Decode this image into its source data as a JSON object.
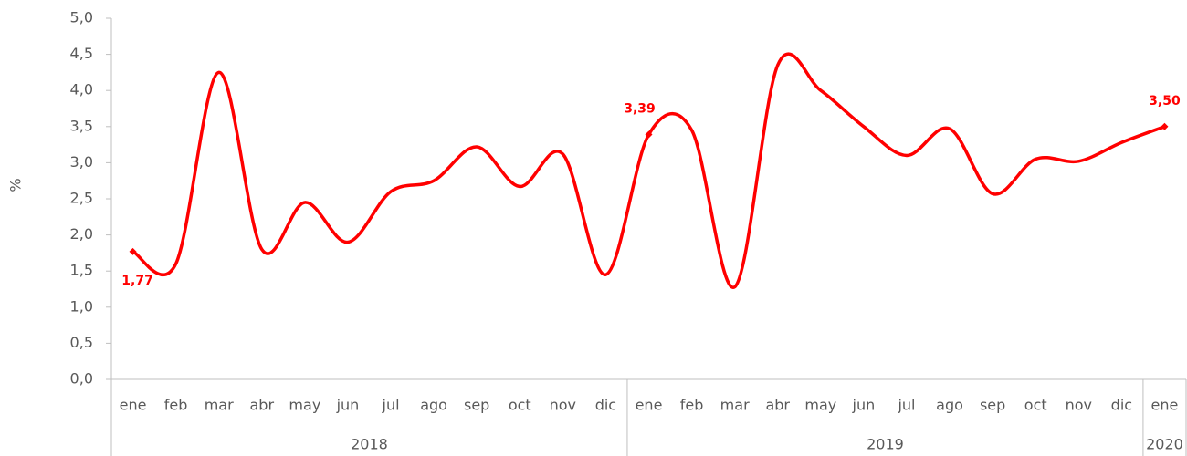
{
  "chart_data": {
    "type": "line",
    "y_label": "%",
    "categories": [
      "ene",
      "feb",
      "mar",
      "abr",
      "may",
      "jun",
      "jul",
      "ago",
      "sep",
      "oct",
      "nov",
      "dic",
      "ene",
      "feb",
      "mar",
      "abr",
      "may",
      "jun",
      "jul",
      "ago",
      "sep",
      "oct",
      "nov",
      "dic",
      "ene"
    ],
    "years": [
      "2018",
      null,
      null,
      null,
      null,
      null,
      null,
      null,
      null,
      null,
      null,
      null,
      "2019",
      null,
      null,
      null,
      null,
      null,
      null,
      null,
      null,
      null,
      null,
      null,
      "2020"
    ],
    "series": [
      {
        "color": "#ff0000",
        "values": [
          1.77,
          1.6,
          4.25,
          1.8,
          2.45,
          1.9,
          2.6,
          2.75,
          3.22,
          2.67,
          3.12,
          1.45,
          3.39,
          3.45,
          1.28,
          4.35,
          4.0,
          3.5,
          3.1,
          3.47,
          2.57,
          3.05,
          3.02,
          3.28,
          3.5
        ],
        "value_labels": [
          "1,77",
          null,
          null,
          null,
          null,
          null,
          null,
          null,
          null,
          null,
          null,
          null,
          "3,39",
          null,
          null,
          null,
          null,
          null,
          null,
          null,
          null,
          null,
          null,
          null,
          "3,50"
        ]
      }
    ],
    "ylim": [
      0,
      5
    ],
    "yticks": [
      {
        "value": 0,
        "label": "0,0"
      },
      {
        "value": 0.5,
        "label": "0,5"
      },
      {
        "value": 1,
        "label": "1,0"
      },
      {
        "value": 1.5,
        "label": "1,5"
      },
      {
        "value": 2,
        "label": "2,0"
      },
      {
        "value": 2.5,
        "label": "2,5"
      },
      {
        "value": 3,
        "label": "3,0"
      },
      {
        "value": 3.5,
        "label": "3,5"
      },
      {
        "value": 4,
        "label": "4,0"
      },
      {
        "value": 4.5,
        "label": "4,5"
      },
      {
        "value": 5,
        "label": "5,0"
      }
    ],
    "smooth": true
  }
}
